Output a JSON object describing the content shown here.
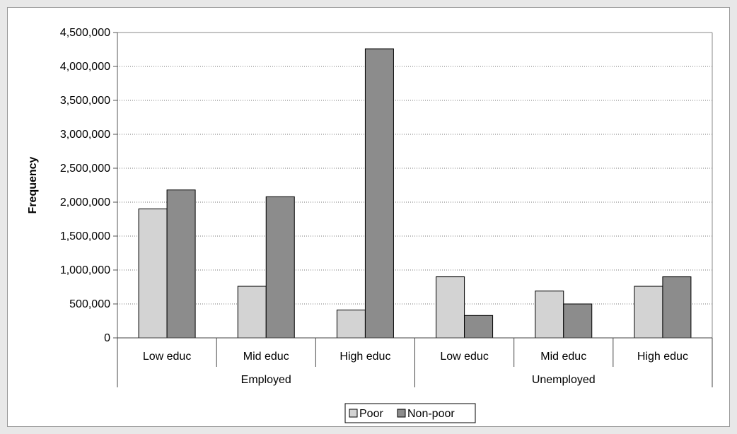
{
  "chart_data": {
    "type": "bar",
    "title": "",
    "ylabel": "Frequency",
    "xlabel": "",
    "ylim": [
      0,
      4500000
    ],
    "yticks": [
      0,
      500000,
      1000000,
      1500000,
      2000000,
      2500000,
      3000000,
      3500000,
      4000000,
      4500000
    ],
    "ytick_labels": [
      "0",
      "500,000",
      "1,000,000",
      "1,500,000",
      "2,000,000",
      "2,500,000",
      "3,000,000",
      "3,500,000",
      "4,000,000",
      "4,500,000"
    ],
    "categories": [
      "Low educ",
      "Mid educ",
      "High educ",
      "Low educ",
      "Mid educ",
      "High educ"
    ],
    "groups": [
      {
        "label": "Employed",
        "categories": [
          "Low educ",
          "Mid educ",
          "High educ"
        ]
      },
      {
        "label": "Unemployed",
        "categories": [
          "Low educ",
          "Mid educ",
          "High educ"
        ]
      }
    ],
    "series": [
      {
        "name": "Poor",
        "color": "#d3d3d3",
        "values": [
          1900000,
          760000,
          410000,
          900000,
          690000,
          760000
        ]
      },
      {
        "name": "Non-poor",
        "color": "#8c8c8c",
        "values": [
          2180000,
          2080000,
          4260000,
          330000,
          500000,
          900000
        ]
      }
    ],
    "grid": true,
    "grid_style": "dotted",
    "legend_position": "bottom"
  }
}
